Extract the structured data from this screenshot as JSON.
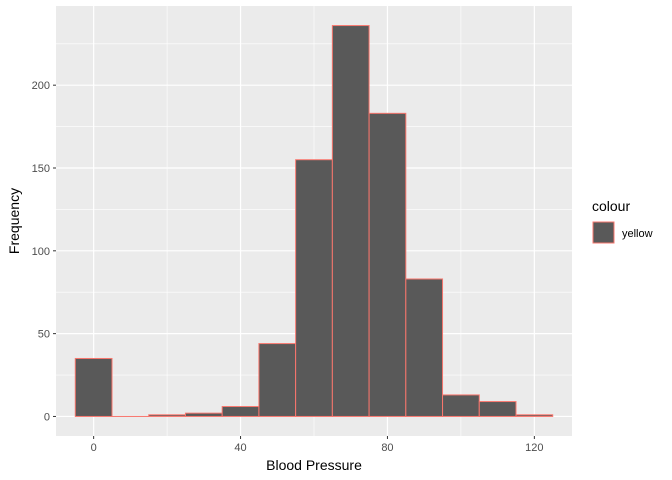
{
  "chart_data": {
    "type": "bar",
    "subtype": "histogram",
    "bin_width": 10,
    "bins": [
      {
        "center": 0,
        "count": 35
      },
      {
        "center": 10,
        "count": 0
      },
      {
        "center": 20,
        "count": 1
      },
      {
        "center": 30,
        "count": 2
      },
      {
        "center": 40,
        "count": 6
      },
      {
        "center": 50,
        "count": 44
      },
      {
        "center": 60,
        "count": 155
      },
      {
        "center": 70,
        "count": 236
      },
      {
        "center": 80,
        "count": 183
      },
      {
        "center": 90,
        "count": 83
      },
      {
        "center": 100,
        "count": 13
      },
      {
        "center": 110,
        "count": 9
      },
      {
        "center": 120,
        "count": 1
      }
    ],
    "xlabel": "Blood Pressure",
    "ylabel": "Frequency",
    "xlim": [
      -10.25,
      130.25
    ],
    "ylim": [
      -11.8,
      247.8
    ],
    "x_ticks": [
      0,
      40,
      80,
      120
    ],
    "x_minor_ticks": [
      20,
      60,
      100
    ],
    "y_ticks": [
      0,
      50,
      100,
      150,
      200
    ],
    "y_minor_ticks": [
      25,
      75,
      125,
      175,
      225
    ],
    "grid": true,
    "bar_fill": "#595959",
    "bar_outline": "#f8766d",
    "panel_background": "#ebebeb",
    "grid_color": "#ffffff",
    "legend": {
      "title": "colour",
      "placement": "right",
      "entries": [
        {
          "label": "yellow",
          "fill": "#595959",
          "outline": "#f8766d"
        }
      ]
    }
  }
}
